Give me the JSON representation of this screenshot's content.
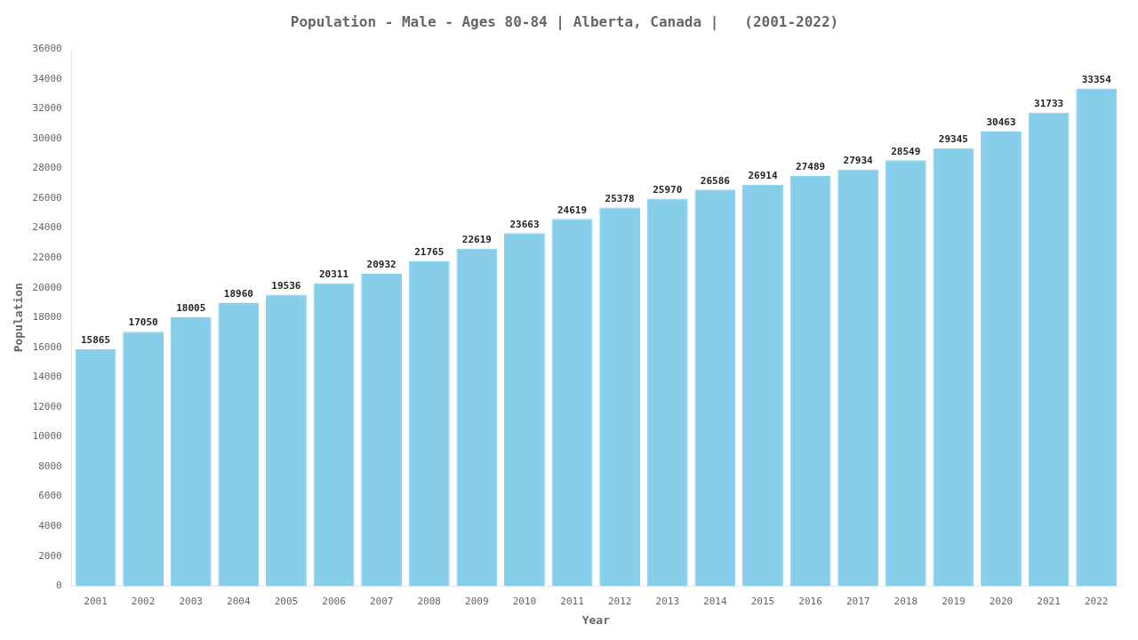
{
  "chart_data": {
    "type": "bar",
    "title": "Population - Male - Ages 80-84 | Alberta, Canada |   (2001-2022)",
    "x_label": "Year",
    "y_label": "Population",
    "categories": [
      "2001",
      "2002",
      "2003",
      "2004",
      "2005",
      "2006",
      "2007",
      "2008",
      "2009",
      "2010",
      "2011",
      "2012",
      "2013",
      "2014",
      "2015",
      "2016",
      "2017",
      "2018",
      "2019",
      "2020",
      "2021",
      "2022"
    ],
    "values": [
      15865,
      17050,
      18005,
      18960,
      19536,
      20311,
      20932,
      21765,
      22619,
      23663,
      24619,
      25378,
      25970,
      26586,
      26914,
      27489,
      27934,
      28549,
      29345,
      30463,
      31733,
      33354
    ],
    "color": "#87CEEB",
    "ylim": [
      0,
      36000
    ],
    "yticks": [
      0,
      2000,
      4000,
      6000,
      8000,
      10000,
      12000,
      14000,
      16000,
      18000,
      20000,
      22000,
      24000,
      26000,
      28000,
      30000,
      32000,
      34000,
      36000
    ],
    "grid": false,
    "data_labels": true
  }
}
